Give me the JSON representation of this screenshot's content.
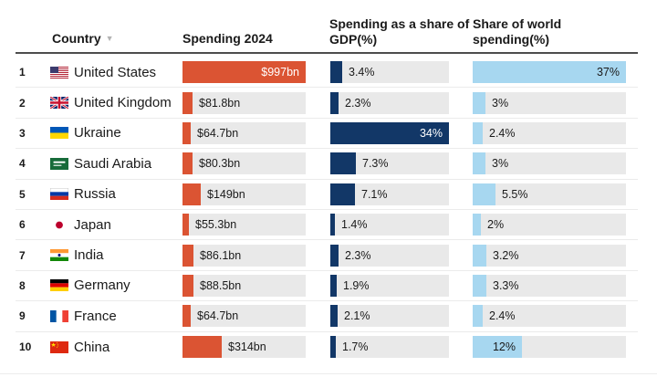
{
  "colors": {
    "spending_bar": "#db5433",
    "gdp_bar": "#123767",
    "world_bar": "#a7d7f0",
    "bar_track": "#e9e9e9",
    "header_rule": "#4d4d4d",
    "row_divider": "#ebebeb",
    "text": "#1a1a1a"
  },
  "table": {
    "header": {
      "country_label": "Country",
      "sort_indicator": "▼",
      "spending_label": "Spending 2024",
      "gdp_label": "Spending as a share of GDP(%)",
      "world_label": "Share of world spending(%)"
    },
    "scales": {
      "spending_max": 997,
      "gdp_max": 34,
      "world_max": 37
    },
    "rows": [
      {
        "rank": "1",
        "country": "United States",
        "flag": "us",
        "flag_icon": "united-states-flag-icon",
        "spending": {
          "label": "$997bn",
          "value": 997
        },
        "gdp": {
          "label": "3.4%",
          "value": 3.4
        },
        "world": {
          "label": "37%",
          "value": 37
        }
      },
      {
        "rank": "2",
        "country": "United Kingdom",
        "flag": "uk",
        "flag_icon": "united-kingdom-flag-icon",
        "spending": {
          "label": "$81.8bn",
          "value": 81.8
        },
        "gdp": {
          "label": "2.3%",
          "value": 2.3
        },
        "world": {
          "label": "3%",
          "value": 3
        }
      },
      {
        "rank": "3",
        "country": "Ukraine",
        "flag": "ua",
        "flag_icon": "ukraine-flag-icon",
        "spending": {
          "label": "$64.7bn",
          "value": 64.7
        },
        "gdp": {
          "label": "34%",
          "value": 34
        },
        "world": {
          "label": "2.4%",
          "value": 2.4
        }
      },
      {
        "rank": "4",
        "country": "Saudi Arabia",
        "flag": "sa",
        "flag_icon": "saudi-arabia-flag-icon",
        "spending": {
          "label": "$80.3bn",
          "value": 80.3
        },
        "gdp": {
          "label": "7.3%",
          "value": 7.3
        },
        "world": {
          "label": "3%",
          "value": 3
        }
      },
      {
        "rank": "5",
        "country": "Russia",
        "flag": "ru",
        "flag_icon": "russia-flag-icon",
        "spending": {
          "label": "$149bn",
          "value": 149
        },
        "gdp": {
          "label": "7.1%",
          "value": 7.1
        },
        "world": {
          "label": "5.5%",
          "value": 5.5
        }
      },
      {
        "rank": "6",
        "country": "Japan",
        "flag": "jp",
        "flag_icon": "japan-flag-icon",
        "spending": {
          "label": "$55.3bn",
          "value": 55.3
        },
        "gdp": {
          "label": "1.4%",
          "value": 1.4
        },
        "world": {
          "label": "2%",
          "value": 2
        }
      },
      {
        "rank": "7",
        "country": "India",
        "flag": "in",
        "flag_icon": "india-flag-icon",
        "spending": {
          "label": "$86.1bn",
          "value": 86.1
        },
        "gdp": {
          "label": "2.3%",
          "value": 2.3
        },
        "world": {
          "label": "3.2%",
          "value": 3.2
        }
      },
      {
        "rank": "8",
        "country": "Germany",
        "flag": "de",
        "flag_icon": "germany-flag-icon",
        "spending": {
          "label": "$88.5bn",
          "value": 88.5
        },
        "gdp": {
          "label": "1.9%",
          "value": 1.9
        },
        "world": {
          "label": "3.3%",
          "value": 3.3
        }
      },
      {
        "rank": "9",
        "country": "France",
        "flag": "fr",
        "flag_icon": "france-flag-icon",
        "spending": {
          "label": "$64.7bn",
          "value": 64.7
        },
        "gdp": {
          "label": "2.1%",
          "value": 2.1
        },
        "world": {
          "label": "2.4%",
          "value": 2.4
        }
      },
      {
        "rank": "10",
        "country": "China",
        "flag": "cn",
        "flag_icon": "china-flag-icon",
        "spending": {
          "label": "$314bn",
          "value": 314
        },
        "gdp": {
          "label": "1.7%",
          "value": 1.7
        },
        "world": {
          "label": "12%",
          "value": 12
        }
      }
    ]
  },
  "chart_data": {
    "type": "bar",
    "title": "",
    "categories": [
      "United States",
      "United Kingdom",
      "Ukraine",
      "Saudi Arabia",
      "Russia",
      "Japan",
      "India",
      "Germany",
      "France",
      "China"
    ],
    "series": [
      {
        "name": "Spending 2024 ($bn)",
        "values": [
          997,
          81.8,
          64.7,
          80.3,
          149,
          55.3,
          86.1,
          88.5,
          64.7,
          314
        ],
        "color": "#db5433",
        "max": 997
      },
      {
        "name": "Spending as a share of GDP(%)",
        "values": [
          3.4,
          2.3,
          34,
          7.3,
          7.1,
          1.4,
          2.3,
          1.9,
          2.1,
          1.7
        ],
        "color": "#123767",
        "max": 34
      },
      {
        "name": "Share of world spending(%)",
        "values": [
          37,
          3,
          2.4,
          3,
          5.5,
          2,
          3.2,
          3.3,
          2.4,
          12
        ],
        "color": "#a7d7f0",
        "max": 37
      }
    ],
    "legend_position": "none",
    "grid": false
  }
}
